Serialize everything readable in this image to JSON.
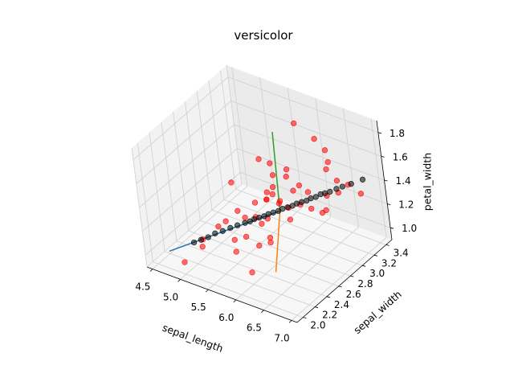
{
  "chart_data": {
    "type": "scatter",
    "projection": "3d",
    "title": "versicolor",
    "xlabel": "sepal_length",
    "ylabel": "sepal_width",
    "zlabel": "petal_width",
    "xlim": [
      4.4,
      7.1
    ],
    "ylim": [
      1.9,
      3.5
    ],
    "zlim": [
      0.9,
      1.9
    ],
    "xticks": [
      "4.5",
      "5.0",
      "5.5",
      "6.0",
      "6.5",
      "7.0"
    ],
    "yticks": [
      "2.0",
      "2.2",
      "2.4",
      "2.6",
      "2.8",
      "3.0",
      "3.2",
      "3.4"
    ],
    "zticks": [
      "1.0",
      "1.2",
      "1.4",
      "1.6",
      "1.8"
    ],
    "grid": true,
    "colors": {
      "samples": "#ff0000",
      "projected": "#000000",
      "axis_line_1": "#1f77b4",
      "axis_line_2": "#ff7f0e",
      "axis_line_3": "#2ca02c",
      "pane_left": "#f2f2f2",
      "pane_back": "#ebebeb",
      "pane_floor": "#f7f7f7",
      "grid": "#cfcfcf"
    },
    "series": [
      {
        "marker": "o",
        "color": "#ff0000",
        "points": [
          [
            7.0,
            3.2,
            1.4
          ],
          [
            6.4,
            3.2,
            1.5
          ],
          [
            6.9,
            3.1,
            1.5
          ],
          [
            5.5,
            2.3,
            1.3
          ],
          [
            6.5,
            2.8,
            1.5
          ],
          [
            5.7,
            2.8,
            1.3
          ],
          [
            6.3,
            3.3,
            1.6
          ],
          [
            4.9,
            2.4,
            1.0
          ],
          [
            6.6,
            2.9,
            1.3
          ],
          [
            5.2,
            2.7,
            1.4
          ],
          [
            5.0,
            2.0,
            1.0
          ],
          [
            5.9,
            3.0,
            1.5
          ],
          [
            6.0,
            2.2,
            1.0
          ],
          [
            6.1,
            2.9,
            1.4
          ],
          [
            5.6,
            2.9,
            1.3
          ],
          [
            6.7,
            3.1,
            1.4
          ],
          [
            5.6,
            3.0,
            1.5
          ],
          [
            5.8,
            2.7,
            1.0
          ],
          [
            6.2,
            2.2,
            1.5
          ],
          [
            5.6,
            2.5,
            1.1
          ],
          [
            5.9,
            3.2,
            1.8
          ],
          [
            6.1,
            2.8,
            1.3
          ],
          [
            6.3,
            2.5,
            1.5
          ],
          [
            6.1,
            2.8,
            1.2
          ],
          [
            6.4,
            2.9,
            1.3
          ],
          [
            6.6,
            3.0,
            1.4
          ],
          [
            6.8,
            2.8,
            1.4
          ],
          [
            6.7,
            3.0,
            1.7
          ],
          [
            6.0,
            2.9,
            1.5
          ],
          [
            5.7,
            2.6,
            1.0
          ],
          [
            5.5,
            2.4,
            1.1
          ],
          [
            5.5,
            2.4,
            1.0
          ],
          [
            5.8,
            2.7,
            1.2
          ],
          [
            6.0,
            2.7,
            1.6
          ],
          [
            5.4,
            3.0,
            1.5
          ],
          [
            6.0,
            3.4,
            1.6
          ],
          [
            6.7,
            3.1,
            1.5
          ],
          [
            6.3,
            2.3,
            1.3
          ],
          [
            5.6,
            3.0,
            1.3
          ],
          [
            5.5,
            2.5,
            1.3
          ],
          [
            5.5,
            2.6,
            1.2
          ],
          [
            6.1,
            3.0,
            1.4
          ],
          [
            5.8,
            2.6,
            1.2
          ],
          [
            5.0,
            2.3,
            1.0
          ],
          [
            5.6,
            2.7,
            1.3
          ],
          [
            5.7,
            3.0,
            1.2
          ],
          [
            5.7,
            2.9,
            1.3
          ],
          [
            6.2,
            2.9,
            1.3
          ],
          [
            5.1,
            2.5,
            1.1
          ],
          [
            5.7,
            2.8,
            1.3
          ]
        ]
      },
      {
        "marker": "o",
        "color": "#000000",
        "points": [
          [
            4.85,
            2.3,
            1.01
          ],
          [
            4.94,
            2.34,
            1.03
          ],
          [
            5.03,
            2.38,
            1.05
          ],
          [
            5.12,
            2.42,
            1.08
          ],
          [
            5.22,
            2.46,
            1.1
          ],
          [
            5.31,
            2.51,
            1.12
          ],
          [
            5.4,
            2.55,
            1.14
          ],
          [
            5.5,
            2.59,
            1.16
          ],
          [
            5.56,
            2.62,
            1.17
          ],
          [
            5.62,
            2.64,
            1.19
          ],
          [
            5.68,
            2.67,
            1.2
          ],
          [
            5.74,
            2.7,
            1.21
          ],
          [
            5.8,
            2.72,
            1.23
          ],
          [
            5.86,
            2.75,
            1.24
          ],
          [
            5.92,
            2.78,
            1.25
          ],
          [
            5.98,
            2.8,
            1.27
          ],
          [
            6.04,
            2.83,
            1.28
          ],
          [
            6.1,
            2.86,
            1.29
          ],
          [
            6.16,
            2.88,
            1.31
          ],
          [
            6.22,
            2.91,
            1.32
          ],
          [
            6.28,
            2.94,
            1.33
          ],
          [
            6.34,
            2.96,
            1.35
          ],
          [
            6.4,
            2.99,
            1.36
          ],
          [
            6.46,
            3.02,
            1.38
          ],
          [
            6.52,
            3.04,
            1.39
          ],
          [
            6.58,
            3.07,
            1.4
          ],
          [
            6.66,
            3.11,
            1.42
          ],
          [
            6.74,
            3.14,
            1.44
          ],
          [
            6.85,
            3.19,
            1.46
          ],
          [
            6.99,
            3.26,
            1.49
          ]
        ]
      }
    ],
    "lines": [
      {
        "color": "#1f77b4",
        "points": [
          [
            4.55,
            2.15,
            0.95
          ],
          [
            5.94,
            2.79,
            1.25
          ]
        ]
      },
      {
        "color": "#ff7f0e",
        "points": [
          [
            5.94,
            2.79,
            1.25
          ],
          [
            6.2,
            2.4,
            0.95
          ]
        ]
      },
      {
        "color": "#2ca02c",
        "points": [
          [
            5.94,
            2.79,
            1.25
          ],
          [
            5.6,
            3.1,
            1.72
          ]
        ]
      }
    ]
  }
}
